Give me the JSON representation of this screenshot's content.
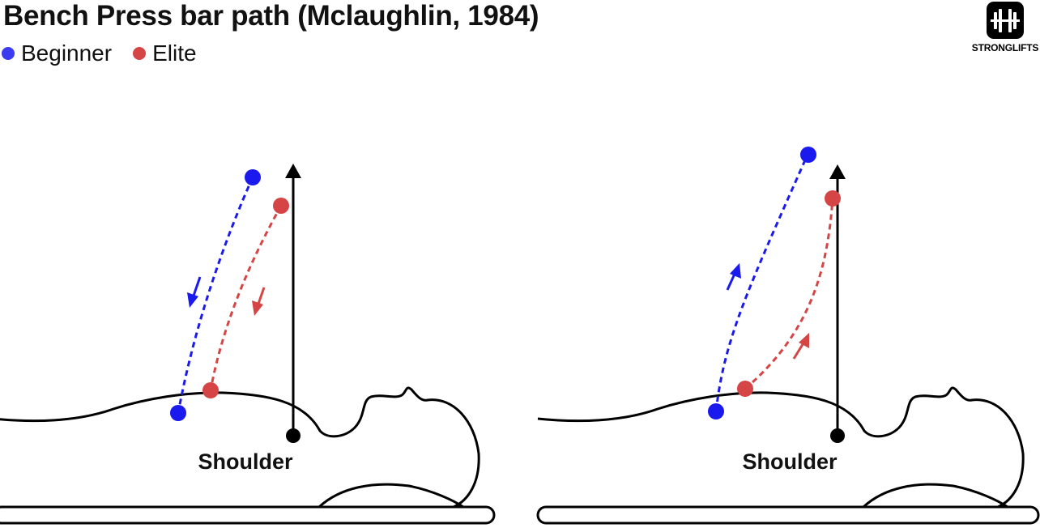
{
  "title": "Bench Press bar path (Mclaughlin, 1984)",
  "legend": [
    {
      "label": "Beginner",
      "color": "#3b3bf0"
    },
    {
      "label": "Elite",
      "color": "#d64545"
    }
  ],
  "logo": {
    "text": "STRONGLIFTS"
  },
  "panels": [
    {
      "shoulder_label": "Shoulder",
      "phase": "descent"
    },
    {
      "shoulder_label": "Shoulder",
      "phase": "ascent"
    }
  ],
  "colors": {
    "beginner": "#1a1aee",
    "elite": "#d64545",
    "outline": "#000000"
  }
}
